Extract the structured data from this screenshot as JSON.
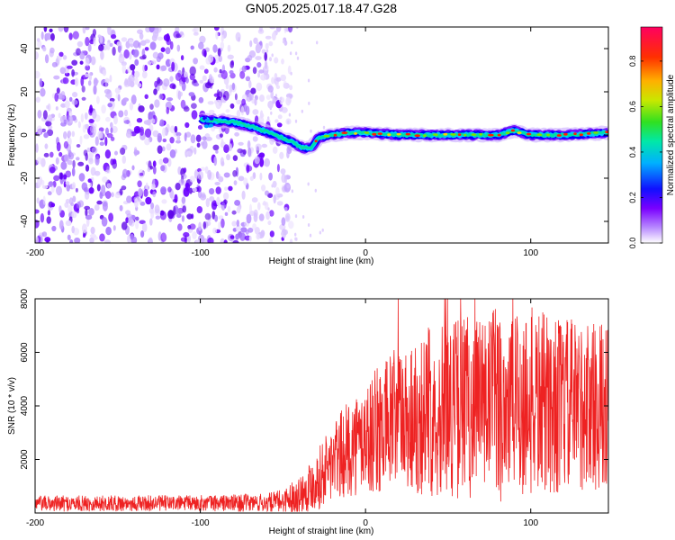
{
  "figure": {
    "title": "GN05.2025.017.18.47.G28"
  },
  "chart_data": [
    {
      "type": "heatmap",
      "xlabel": "Height of straight line (km)",
      "ylabel": "Frequency (Hz)",
      "xlim": [
        -200,
        147
      ],
      "ylim": [
        -50,
        50
      ],
      "xticks": [
        -200,
        -100,
        0,
        100
      ],
      "yticks": [
        -40,
        -20,
        0,
        20,
        40
      ],
      "colorbar": {
        "label": "Normalized spectral amplitude",
        "range": [
          0,
          0.95
        ],
        "ticks": [
          "0.0",
          "0.2",
          "0.4",
          "0.6",
          "0.8"
        ]
      },
      "ridge": {
        "x": [
          -100,
          -80,
          -65,
          -55,
          -45,
          -38,
          -33,
          -28,
          -20,
          -10,
          0,
          20,
          40,
          60,
          80,
          90,
          100,
          120,
          147
        ],
        "frequency": [
          7,
          6,
          3,
          0,
          -3,
          -6,
          -6,
          -1,
          0,
          1,
          1,
          0,
          0,
          0,
          0,
          2,
          0,
          0,
          1
        ]
      },
      "noise_region_x": [
        -200,
        -55
      ],
      "grid": false,
      "colors": {
        "noise": "#6a00ff",
        "signal_low": "#0000ff",
        "signal_mid": "#00e0a0",
        "signal_high": "#ff2000"
      }
    },
    {
      "type": "line",
      "xlabel": "Height of straight line (km)",
      "ylabel": "SNR (10 * v/v)",
      "xlim": [
        -200,
        147
      ],
      "ylim": [
        0,
        8000
      ],
      "xticks": [
        -200,
        -100,
        0,
        100
      ],
      "yticks": [
        2000,
        4000,
        6000,
        8000
      ],
      "series": [
        {
          "color": "#ee2222",
          "envelope_x": [
            -200,
            -150,
            -100,
            -60,
            -50,
            -40,
            -30,
            -20,
            -10,
            0,
            10,
            20,
            40,
            60,
            80,
            90,
            100,
            120,
            147
          ],
          "envelope_mean": [
            350,
            360,
            370,
            380,
            450,
            700,
            1200,
            1900,
            2400,
            2800,
            3200,
            3500,
            3800,
            4000,
            4100,
            4200,
            4100,
            4000,
            4000
          ],
          "envelope_range": [
            300,
            300,
            300,
            350,
            450,
            700,
            1100,
            1500,
            1800,
            2100,
            2500,
            2800,
            3200,
            3500,
            3700,
            3900,
            3600,
            3300,
            3100
          ],
          "peak_max": 8000
        }
      ],
      "grid": false
    }
  ]
}
